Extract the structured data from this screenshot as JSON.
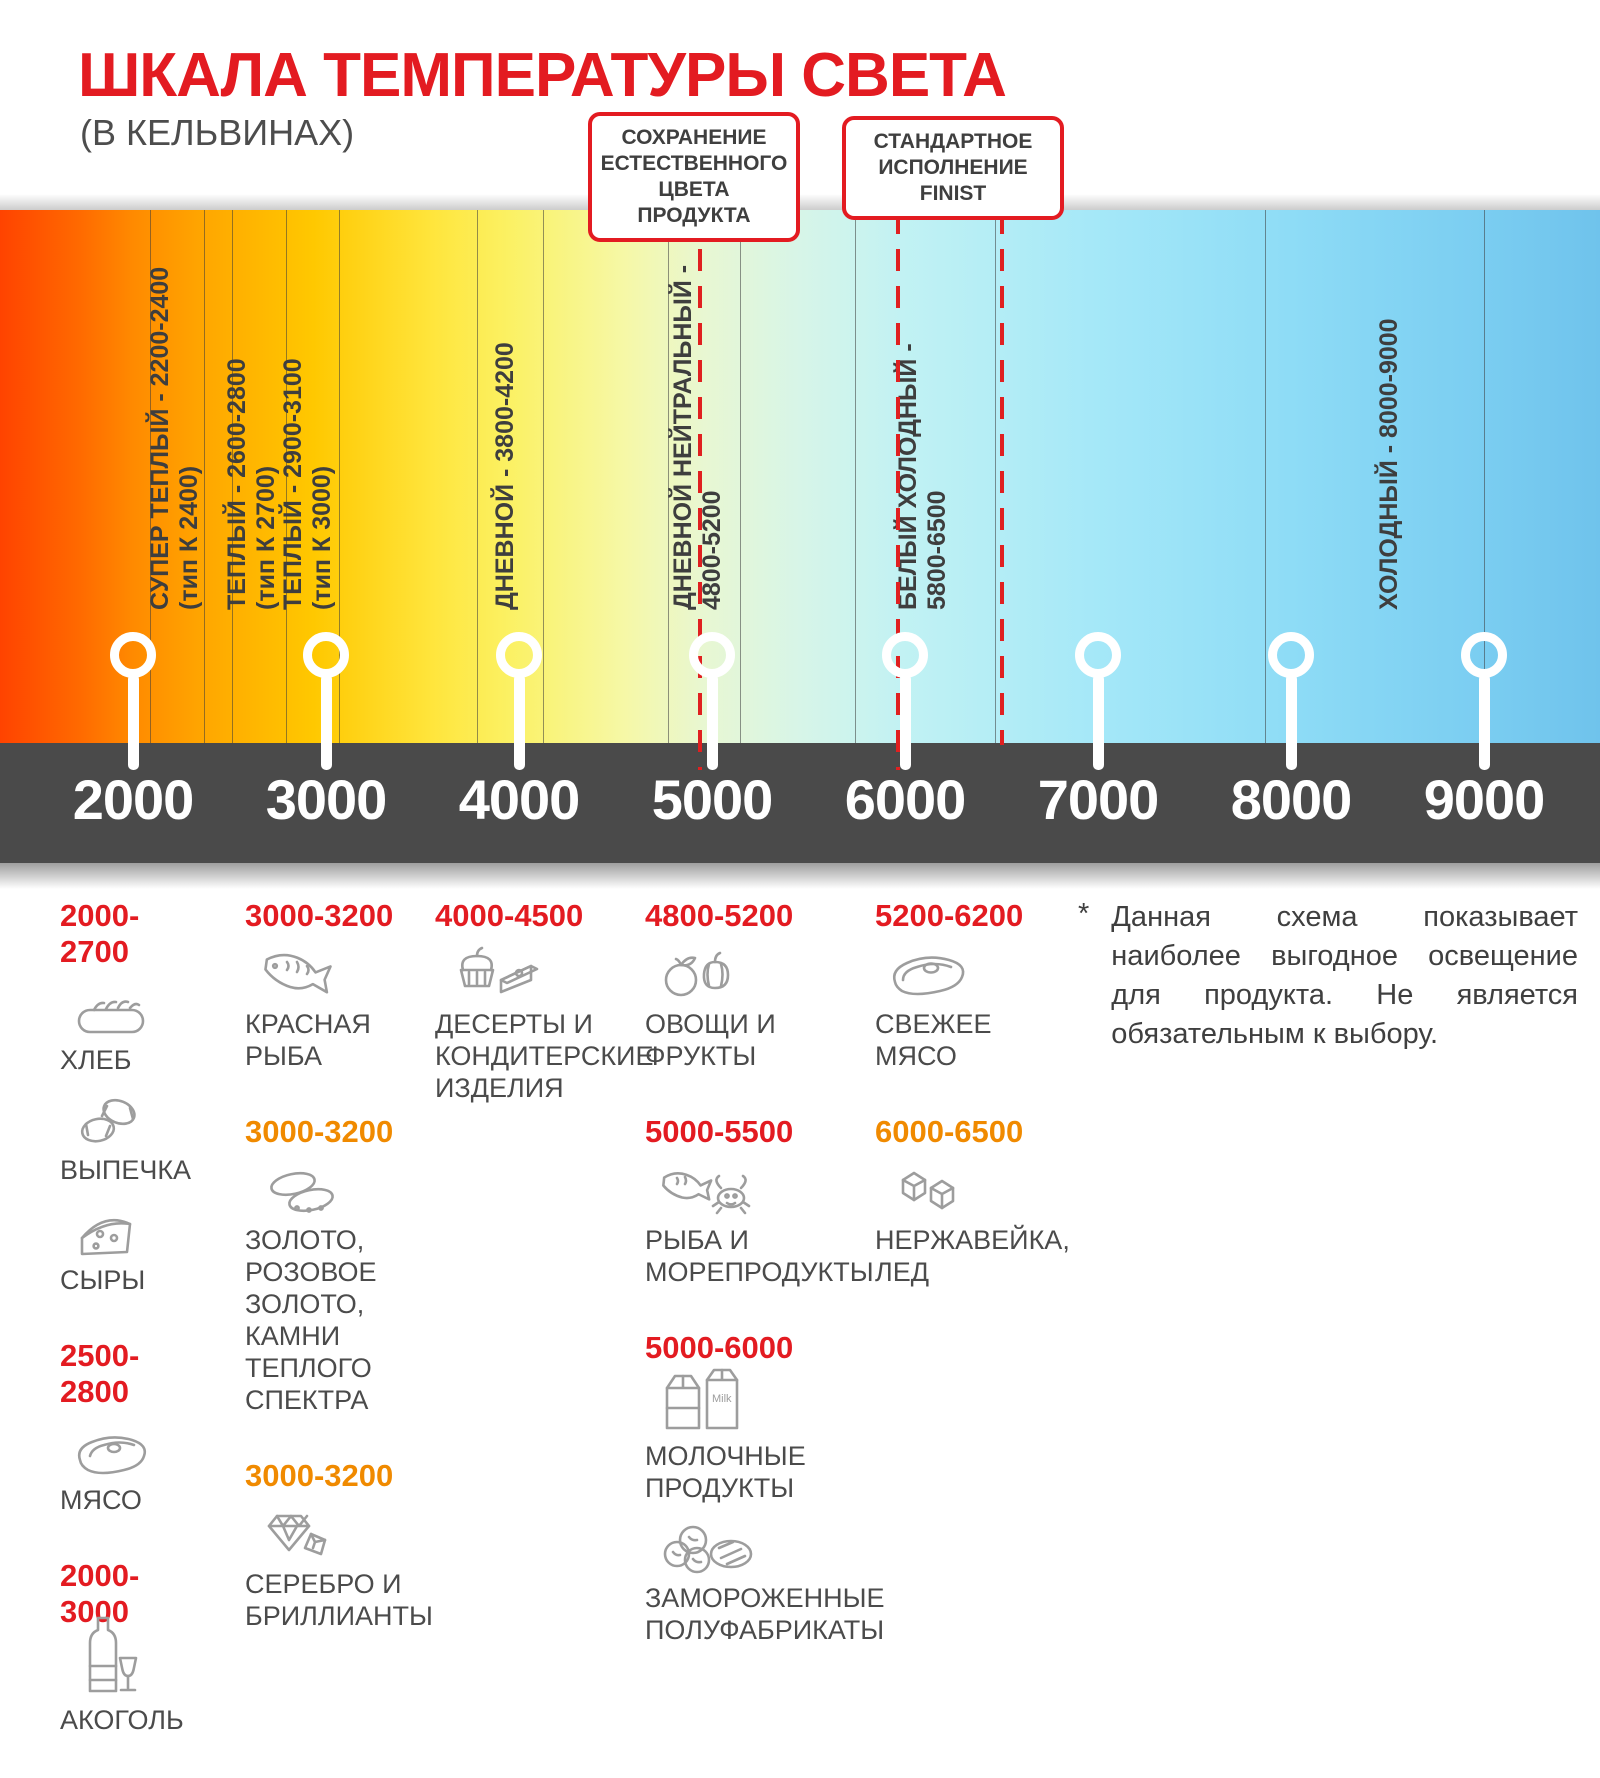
{
  "page": {
    "title": "ШКАЛА ТЕМПЕРАТУРЫ СВЕТА",
    "subtitle": "(В КЕЛЬВИНАХ)"
  },
  "colors": {
    "accent_red": "#e31b21",
    "accent_orange": "#f08a00",
    "axis_band": "#4a4a4a",
    "text_dark": "#3f3f3f",
    "icon_gray": "#9d9d9d"
  },
  "callouts": [
    {
      "id": "natural",
      "text": "СОХРАНЕНИЕ\nЕСТЕСТВЕННОГО\nЦВЕТА ПРОДУКТА",
      "dashed_kelvin": [
        4940
      ]
    },
    {
      "id": "finist",
      "text": "СТАНДАРТНОЕ\nИСПОЛНЕНИЕ\nFINIST",
      "dashed_kelvin": [
        5965,
        6500
      ]
    }
  ],
  "scale": {
    "unit": "K",
    "min": 2000,
    "max": 9000,
    "ticks": [
      2000,
      3000,
      4000,
      5000,
      6000,
      7000,
      8000,
      9000
    ],
    "bands": [
      {
        "label": "СУПЕР ТЕПЛЫЙ - 2200-2400",
        "sub": "(тип К 2400)",
        "kelvin": 2220
      },
      {
        "label": "ТЕПЛЫЙ - 2600-2800",
        "sub": "(тип К 2700)",
        "kelvin": 2615
      },
      {
        "label": "ТЕПЛЫЙ - 2900-3100",
        "sub": "(тип К 3000)",
        "kelvin": 2905
      },
      {
        "label": "ДНЕВНОЙ - 3800-4200",
        "sub": "",
        "kelvin": 3930
      },
      {
        "label": "ДНЕВНОЙ НЕЙТРАЛЬНЫЙ -",
        "sub": "4800-5200",
        "kelvin": 4925
      },
      {
        "label": "БЕЛЫЙ ХОЛОДНЫЙ -",
        "sub": "5800-6500",
        "kelvin": 6095
      },
      {
        "label": "ХОЛОДНЫЙ - 8000-9000",
        "sub": "",
        "kelvin": 8510
      }
    ],
    "gridlines_kelvin": [
      2090,
      2370,
      2515,
      2795,
      3065,
      3780,
      4125,
      4770,
      5145,
      5740,
      6465,
      7865,
      9000
    ]
  },
  "legend": {
    "columns": [
      {
        "blocks": [
          {
            "range": "2000-2700",
            "color": "red",
            "items": [
              {
                "icon": "bread",
                "label": "ХЛЕБ"
              },
              {
                "icon": "croissant",
                "label": "ВЫПЕЧКА"
              },
              {
                "icon": "cheese",
                "label": "СЫРЫ"
              }
            ]
          },
          {
            "range": "2500-2800",
            "color": "red",
            "items": [
              {
                "icon": "meat",
                "label": "МЯСО"
              }
            ]
          },
          {
            "range": "2000-3000",
            "color": "red",
            "items": [
              {
                "icon": "alcohol",
                "label": "АКОГОЛЬ"
              }
            ]
          }
        ]
      },
      {
        "blocks": [
          {
            "range": "3000-3200",
            "color": "red",
            "items": [
              {
                "icon": "fish",
                "label": "КРАСНАЯ\nРЫБА"
              }
            ]
          },
          {
            "range": "3000-3200",
            "color": "orange",
            "items": [
              {
                "icon": "rings",
                "label": "ЗОЛОТО,\nРОЗОВОЕ ЗОЛОТО,\nКАМНИ ТЕПЛОГО\nСПЕКТРА"
              }
            ]
          },
          {
            "range": "3000-3200",
            "color": "orange",
            "items": [
              {
                "icon": "diamonds",
                "label": "СЕРЕБРО И\nБРИЛЛИАНТЫ"
              }
            ]
          }
        ]
      },
      {
        "blocks": [
          {
            "range": "4000-4500",
            "color": "red",
            "items": [
              {
                "icon": "desserts",
                "label": "ДЕСЕРТЫ И\nКОНДИТЕРСКИЕ\nИЗДЕЛИЯ"
              }
            ]
          }
        ]
      },
      {
        "blocks": [
          {
            "range": "4800-5200",
            "color": "red",
            "items": [
              {
                "icon": "vegetables",
                "label": "ОВОЩИ И\nФРУКТЫ"
              }
            ]
          },
          {
            "range": "5000-5500",
            "color": "red",
            "items": [
              {
                "icon": "seafood",
                "label": "РЫБА И\nМОРЕПРОДУКТЫ"
              }
            ]
          },
          {
            "range": "5000-6000",
            "color": "red",
            "items": [
              {
                "icon": "milk",
                "label": "МОЛОЧНЫЕ ПРОДУКТЫ"
              },
              {
                "icon": "frozen",
                "label": "ЗАМОРОЖЕННЫЕ\nПОЛУФАБРИКАТЫ"
              }
            ]
          }
        ]
      },
      {
        "blocks": [
          {
            "range": "5200-6200",
            "color": "red",
            "items": [
              {
                "icon": "steak",
                "label": "СВЕЖЕЕ\nМЯСО"
              }
            ]
          },
          {
            "range": "6000-6500",
            "color": "orange",
            "items": [
              {
                "icon": "ice",
                "label": "НЕРЖАВЕЙКА,\nЛЕД"
              }
            ]
          }
        ]
      }
    ],
    "footnote_marker": "*",
    "footnote": "Данная схема показывает наиболее выгодное освещение для продукта. Не является обязательным к выбору."
  }
}
